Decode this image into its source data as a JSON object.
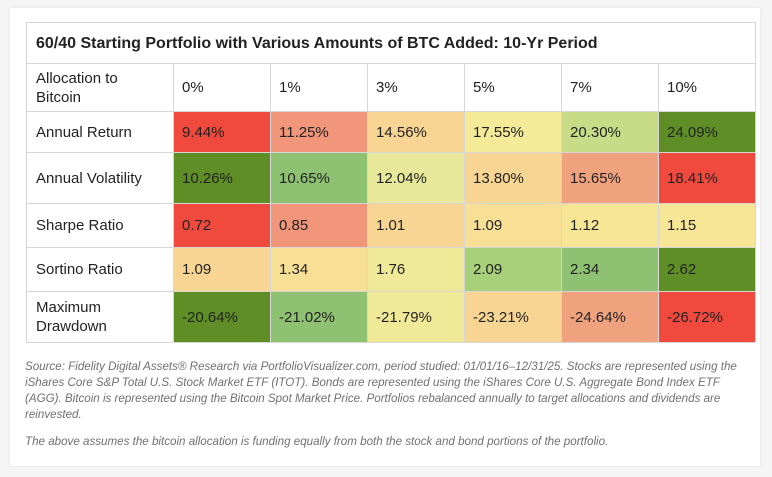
{
  "table": {
    "title": "60/40 Starting Portfolio with Various Amounts of BTC Added: 10-Yr Period",
    "header_label": "Allocation to Bitcoin",
    "columns": [
      "0%",
      "1%",
      "3%",
      "5%",
      "7%",
      "10%"
    ],
    "rows": [
      {
        "label": "Annual Return",
        "values": [
          "9.44%",
          "11.25%",
          "14.56%",
          "17.55%",
          "20.30%",
          "24.09%"
        ],
        "colors": [
          "#f04a3e",
          "#f1957b",
          "#f8d592",
          "#f4ea98",
          "#c8dc88",
          "#5e8e25"
        ]
      },
      {
        "label": "Annual Volatility",
        "values": [
          "10.26%",
          "10.65%",
          "12.04%",
          "13.80%",
          "15.65%",
          "18.41%"
        ],
        "colors": [
          "#5e8e25",
          "#8fc173",
          "#e7e899",
          "#f8d592",
          "#f0a27e",
          "#f04a3e"
        ]
      },
      {
        "label": "Sharpe Ratio",
        "values": [
          "0.72",
          "0.85",
          "1.01",
          "1.09",
          "1.12",
          "1.15"
        ],
        "colors": [
          "#f04a3e",
          "#f1957b",
          "#f8d592",
          "#f8df96",
          "#f8e697",
          "#f8e697"
        ]
      },
      {
        "label": "Sortino Ratio",
        "values": [
          "1.09",
          "1.34",
          "1.76",
          "2.09",
          "2.34",
          "2.62"
        ],
        "colors": [
          "#f8d592",
          "#f8df96",
          "#f0e998",
          "#a8cf7a",
          "#8fc173",
          "#5e8e25"
        ]
      },
      {
        "label": "Maximum Drawdown",
        "values": [
          "-20.64%",
          "-21.02%",
          "-21.79%",
          "-23.21%",
          "-24.64%",
          "-26.72%"
        ],
        "colors": [
          "#5e8e25",
          "#8fc173",
          "#f0e998",
          "#f8d592",
          "#f0a27e",
          "#f04a3e"
        ]
      }
    ]
  },
  "footnotes": {
    "source": "Source: Fidelity Digital Assets® Research via PortfolioVisualizer.com, period studied: 01/01/16–12/31/25. Stocks are represented using the iShares Core S&P Total U.S. Stock Market ETF (ITOT). Bonds are represented using the iShares Core U.S. Aggregate Bond Index ETF (AGG). Bitcoin is represented using the Bitcoin Spot Market Price. Portfolios rebalanced annually to target allocations and dividends are reinvested.",
    "assumption": "The above assumes the bitcoin allocation is funding equally from both the stock and bond portions of the portfolio."
  }
}
